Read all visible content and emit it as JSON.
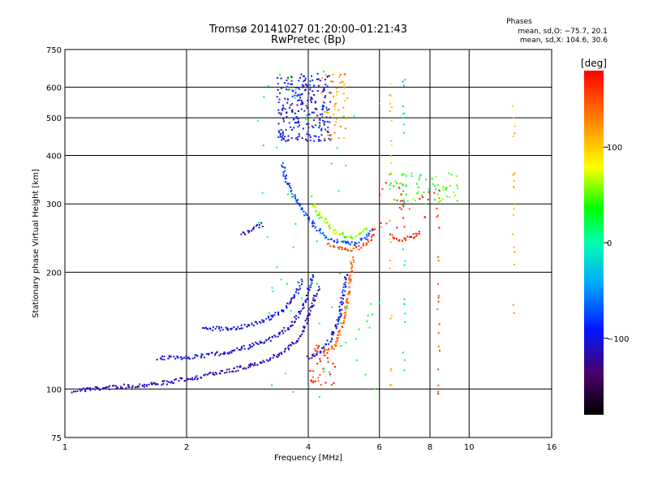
{
  "chart_data": {
    "type": "scatter",
    "title": "Tromsø 20141027 01:20:00–01:21:43",
    "subtitle": "RwPretec (Bp)",
    "xlabel": "Frequency [MHz]",
    "ylabel": "Stationary phase Virtual Height [km]",
    "xscale": "log",
    "yscale": "log",
    "xlim": [
      1,
      16
    ],
    "ylim": [
      75,
      750
    ],
    "x_ticks": [
      "1",
      "2",
      "4",
      "6",
      "8",
      "10",
      "16"
    ],
    "x_tick_values": [
      1,
      2,
      4,
      6,
      8,
      10,
      16
    ],
    "x_grid": [
      2,
      4,
      6,
      8,
      10
    ],
    "y_ticks": [
      "75",
      "100",
      "200",
      "300",
      "400",
      "500",
      "600",
      "750"
    ],
    "y_tick_values": [
      75,
      100,
      200,
      300,
      400,
      500,
      600,
      750
    ],
    "y_grid": [
      100,
      200,
      300,
      400,
      500,
      600
    ],
    "grid": true,
    "phases_header": "Phases",
    "phases_O": "mean, sd,O: −75.7, 20.1",
    "phases_X": "mean, sd,X: 104.6, 30.6",
    "colorbar": {
      "label": "[deg]",
      "range": [
        -180,
        180
      ],
      "ticks": [
        "100",
        "0",
        "−100"
      ],
      "tick_values": [
        100,
        0,
        -100
      ]
    },
    "series": [
      {
        "kind": "curve",
        "points": [
          [
            1.05,
            99
          ],
          [
            1.3,
            101
          ],
          [
            1.5,
            102
          ],
          [
            1.8,
            104
          ],
          [
            2.1,
            107
          ],
          [
            2.5,
            111
          ],
          [
            2.9,
            115
          ],
          [
            3.3,
            121
          ],
          [
            3.6,
            128
          ],
          [
            3.8,
            136
          ],
          [
            3.95,
            148
          ],
          [
            4.05,
            160
          ],
          [
            4.15,
            172
          ],
          [
            4.25,
            183
          ]
        ],
        "phase": -110
      },
      {
        "kind": "curve",
        "points": [
          [
            1.7,
            120
          ],
          [
            2.1,
            121
          ],
          [
            2.5,
            124
          ],
          [
            2.9,
            129
          ],
          [
            3.3,
            136
          ],
          [
            3.6,
            145
          ],
          [
            3.8,
            156
          ],
          [
            3.95,
            170
          ],
          [
            4.05,
            185
          ],
          [
            4.1,
            198
          ]
        ],
        "phase": -105
      },
      {
        "kind": "curve",
        "points": [
          [
            2.2,
            143
          ],
          [
            2.5,
            143
          ],
          [
            2.8,
            145
          ],
          [
            3.1,
            150
          ],
          [
            3.4,
            157
          ],
          [
            3.6,
            166
          ],
          [
            3.75,
            178
          ],
          [
            3.85,
            192
          ]
        ],
        "phase": -100
      },
      {
        "kind": "curve",
        "points": [
          [
            4.0,
            120
          ],
          [
            4.3,
            124
          ],
          [
            4.55,
            135
          ],
          [
            4.75,
            150
          ],
          [
            4.85,
            168
          ],
          [
            4.92,
            186
          ],
          [
            4.97,
            200
          ]
        ],
        "phase": -95
      },
      {
        "kind": "curve",
        "points": [
          [
            4.4,
            125
          ],
          [
            4.6,
            128
          ],
          [
            4.8,
            140
          ],
          [
            4.95,
            160
          ],
          [
            5.05,
            180
          ],
          [
            5.1,
            200
          ],
          [
            5.15,
            220
          ]
        ],
        "phase": 140
      },
      {
        "kind": "curve",
        "points": [
          [
            3.45,
            380
          ],
          [
            3.55,
            340
          ],
          [
            3.7,
            310
          ],
          [
            3.9,
            285
          ],
          [
            4.15,
            262
          ],
          [
            4.4,
            248
          ],
          [
            4.7,
            240
          ],
          [
            5.0,
            237
          ],
          [
            5.3,
            238
          ],
          [
            5.55,
            245
          ],
          [
            5.8,
            258
          ]
        ],
        "phase": -75
      },
      {
        "kind": "curve",
        "points": [
          [
            4.5,
            235
          ],
          [
            4.8,
            230
          ],
          [
            5.1,
            229
          ],
          [
            5.4,
            232
          ],
          [
            5.7,
            243
          ],
          [
            5.85,
            262
          ]
        ],
        "phase": 155
      },
      {
        "kind": "curve",
        "points": [
          [
            4.1,
            300
          ],
          [
            4.4,
            270
          ],
          [
            4.7,
            252
          ],
          [
            5.0,
            246
          ],
          [
            5.3,
            248
          ],
          [
            5.6,
            262
          ]
        ],
        "phase": 60
      },
      {
        "kind": "curve",
        "points": [
          [
            2.75,
            250
          ],
          [
            2.9,
            256
          ],
          [
            3.0,
            262
          ],
          [
            3.1,
            268
          ]
        ],
        "phase": -110
      },
      {
        "kind": "curve",
        "points": [
          [
            6.4,
            248
          ],
          [
            6.8,
            242
          ],
          [
            7.2,
            246
          ],
          [
            7.6,
            255
          ]
        ],
        "phase": 170
      },
      {
        "kind": "block",
        "x": [
          3.35,
          4.55
        ],
        "y": [
          435,
          650
        ],
        "phase": -100,
        "count": 240
      },
      {
        "kind": "block",
        "x": [
          4.3,
          5.0
        ],
        "y": [
          440,
          650
        ],
        "phase": 120,
        "count": 50
      },
      {
        "kind": "block",
        "x": [
          4.0,
          4.7
        ],
        "y": [
          102,
          130
        ],
        "phase": 160,
        "count": 40
      },
      {
        "kind": "block",
        "x": [
          6.3,
          9.6
        ],
        "y": [
          300,
          360
        ],
        "phase": 40,
        "count": 70
      },
      {
        "kind": "block",
        "x": [
          6.0,
          8.5
        ],
        "y": [
          260,
          340
        ],
        "phase": 170,
        "count": 30
      },
      {
        "kind": "block",
        "x": [
          3.0,
          6.0
        ],
        "y": [
          95,
          660
        ],
        "phase": 20,
        "count": 70
      },
      {
        "kind": "column",
        "x": 6.4,
        "y": [
          100,
          660
        ],
        "phase": 100,
        "count": 25
      },
      {
        "kind": "column",
        "x": 6.9,
        "y": [
          110,
          640
        ],
        "phase": -20,
        "count": 25
      },
      {
        "kind": "column",
        "x": 8.4,
        "y": [
          95,
          330
        ],
        "phase": 150,
        "count": 18
      },
      {
        "kind": "column",
        "x": 12.9,
        "y": [
          150,
          620
        ],
        "phase": 110,
        "count": 20
      }
    ]
  }
}
